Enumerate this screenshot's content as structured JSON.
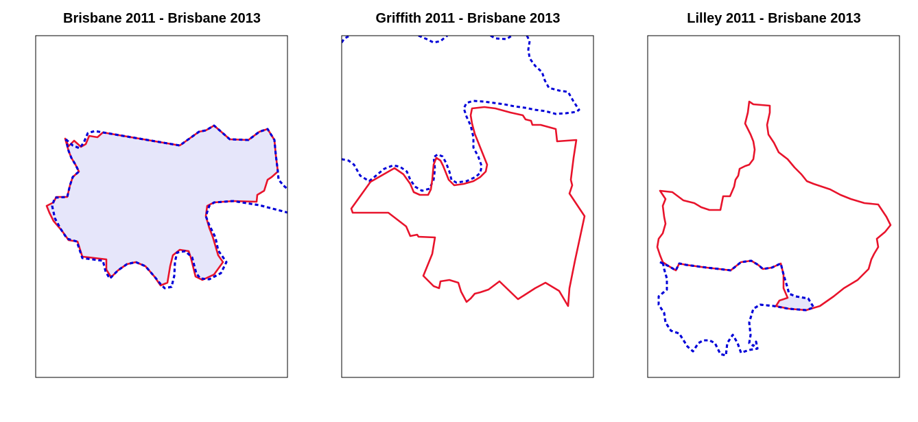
{
  "panels": [
    {
      "title": "Brisbane 2011 - Brisbane 2013"
    },
    {
      "title": "Griffith 2011 - Brisbane 2013"
    },
    {
      "title": "Lilley 2011 - Brisbane 2013"
    }
  ],
  "colors": {
    "boundary_2011": "#e8132b",
    "boundary_2013": "#0000d8",
    "overlap_fill": "#e6e6fa",
    "frame": "#000000"
  },
  "legend": {
    "boundary_2011_style": "solid",
    "boundary_2013_style": "dashed"
  }
}
